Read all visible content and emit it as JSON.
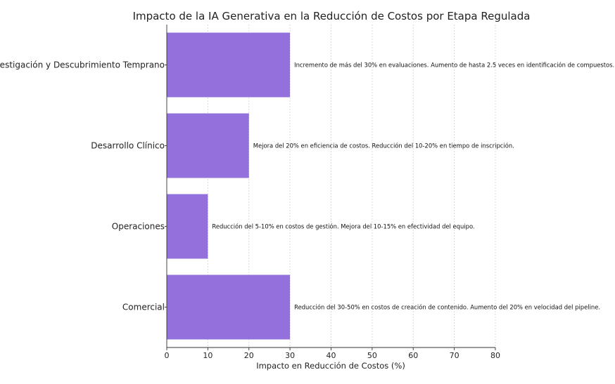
{
  "chart_data": {
    "type": "bar",
    "orientation": "horizontal",
    "title": "Impacto de la IA Generativa en la Reducción de Costos por Etapa Regulada",
    "xlabel": "Impacto en Reducción de Costos (%)",
    "ylabel": "",
    "xlim": [
      0,
      80
    ],
    "xticks": [
      0,
      10,
      20,
      30,
      40,
      50,
      60,
      70,
      80
    ],
    "grid": true,
    "bar_color": "#9370DB",
    "categories": [
      "Investigación y Descubrimiento Temprano",
      "Desarrollo Clínico",
      "Operaciones",
      "Comercial"
    ],
    "values": [
      30,
      20,
      10,
      30
    ],
    "annotations": [
      "Incremento de más del 30% en evaluaciones. Aumento de hasta 2.5 veces en identificación de compuestos.",
      "Mejora del 20% en eficiencia de costos. Reducción del 10-20% en tiempo de inscripción.",
      "Reducción del 5-10% en costos de gestión. Mejora del 10-15% en efectividad del equipo.",
      "Reducción del 30-50% en costos de creación de contenido. Aumento del 20% en velocidad del pipeline."
    ]
  }
}
